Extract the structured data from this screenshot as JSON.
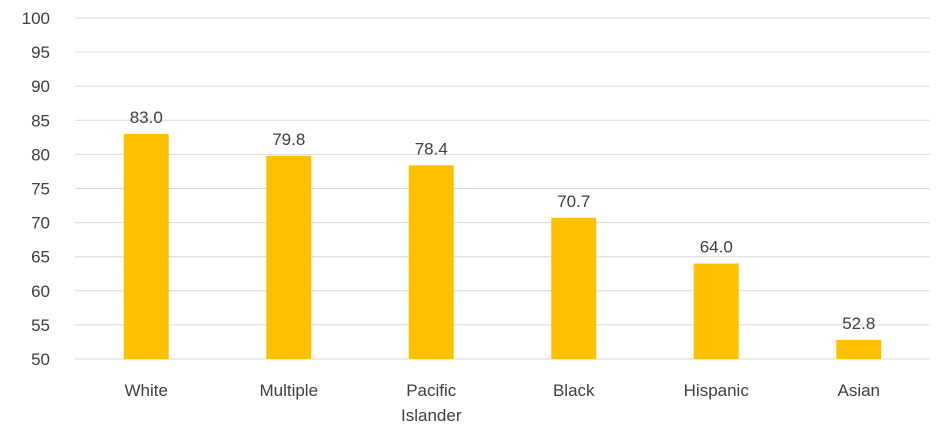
{
  "chart_data": {
    "type": "bar",
    "title": "",
    "xlabel": "",
    "ylabel": "",
    "categories": [
      [
        "White"
      ],
      [
        "Multiple"
      ],
      [
        "Pacific",
        "Islander"
      ],
      [
        "Black"
      ],
      [
        "Hispanic"
      ],
      [
        "Asian"
      ]
    ],
    "values": [
      83.0,
      79.8,
      78.4,
      70.7,
      64.0,
      52.8
    ],
    "data_labels": [
      "83.0",
      "79.8",
      "78.4",
      "70.7",
      "64.0",
      "52.8"
    ],
    "ylim": [
      50,
      100
    ],
    "yticks": [
      50,
      55,
      60,
      65,
      70,
      75,
      80,
      85,
      90,
      95,
      100
    ],
    "grid": true,
    "legend": "none",
    "bar_color": "#FFC000",
    "text_color": "#404040",
    "grid_color": "#D9D9D9"
  }
}
